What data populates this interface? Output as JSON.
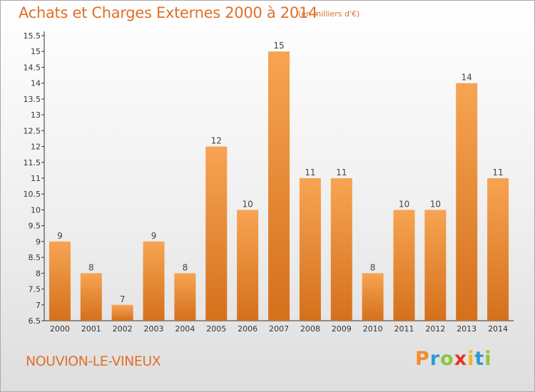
{
  "header": {
    "title": "Achats et Charges Externes 2000 à 2014",
    "subtitle": "(en milliers d'€)"
  },
  "footer": {
    "commune": "NOUVION-LE-VINEUX",
    "logo_letters": [
      {
        "char": "P",
        "color": "#f28c28"
      },
      {
        "char": "r",
        "color": "#2e9bd6"
      },
      {
        "char": "o",
        "color": "#8cc63e"
      },
      {
        "char": "x",
        "color": "#e5332a"
      },
      {
        "char": "i",
        "color": "#f7b516"
      },
      {
        "char": "t",
        "color": "#2e9bd6"
      },
      {
        "char": "i",
        "color": "#8cc63e"
      }
    ]
  },
  "chart_data": {
    "type": "bar",
    "title": "Achats et Charges Externes 2000 à 2014",
    "subtitle": "(en milliers d'€)",
    "categories": [
      "2000",
      "2001",
      "2002",
      "2003",
      "2004",
      "2005",
      "2006",
      "2007",
      "2008",
      "2009",
      "2010",
      "2011",
      "2012",
      "2013",
      "2014"
    ],
    "values": [
      9,
      8,
      7,
      9,
      8,
      12,
      10,
      15,
      11,
      11,
      8,
      10,
      10,
      14,
      11
    ],
    "ylim": [
      6.5,
      15.5
    ],
    "yticks": [
      "6.5",
      "7",
      "7.5",
      "8",
      "8.5",
      "9",
      "9.5",
      "10",
      "10.5",
      "11",
      "11.5",
      "12",
      "12.5",
      "13",
      "13.5",
      "14",
      "14.5",
      "15",
      "15.5"
    ],
    "grid": false,
    "bar_color": "#f08c2e"
  }
}
